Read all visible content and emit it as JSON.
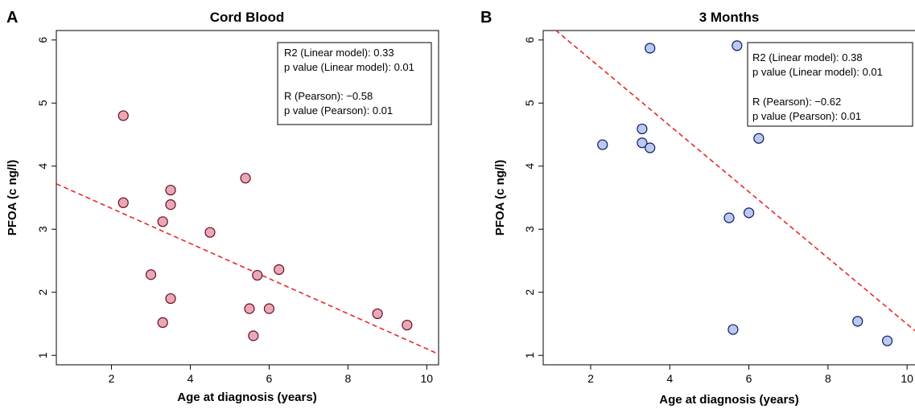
{
  "chart_data": [
    {
      "panel_letter": "A",
      "type": "scatter",
      "title": "Cord Blood",
      "xlabel": "Age at diagnosis (years)",
      "ylabel": "PFOA (c ng/l)",
      "xlim": [
        0.6,
        10.3
      ],
      "ylim": [
        0.85,
        6.15
      ],
      "xticks": [
        2,
        4,
        6,
        8,
        10
      ],
      "yticks": [
        1,
        2,
        3,
        4,
        5,
        6
      ],
      "grid": false,
      "point_color": "#e8a9b6",
      "point_stroke": "#6b0a1e",
      "points": [
        {
          "x": 2.3,
          "y": 4.8
        },
        {
          "x": 2.3,
          "y": 3.42
        },
        {
          "x": 3.0,
          "y": 2.28
        },
        {
          "x": 3.3,
          "y": 3.12
        },
        {
          "x": 3.3,
          "y": 1.52
        },
        {
          "x": 3.5,
          "y": 3.62
        },
        {
          "x": 3.5,
          "y": 3.39
        },
        {
          "x": 3.5,
          "y": 1.9
        },
        {
          "x": 4.5,
          "y": 2.95
        },
        {
          "x": 5.4,
          "y": 3.81
        },
        {
          "x": 5.5,
          "y": 1.74
        },
        {
          "x": 5.6,
          "y": 1.31
        },
        {
          "x": 5.7,
          "y": 2.27
        },
        {
          "x": 6.0,
          "y": 1.74
        },
        {
          "x": 6.25,
          "y": 2.36
        },
        {
          "x": 8.75,
          "y": 1.66
        },
        {
          "x": 9.5,
          "y": 1.48
        }
      ],
      "fit_line": {
        "x": [
          0.6,
          10.3
        ],
        "y": [
          3.72,
          1.02
        ],
        "color": "#e8282b",
        "style": "dashed"
      },
      "stats": [
        "R2 (Linear model): 0.33",
        "p value (Linear model): 0.01",
        "R (Pearson): −0.58",
        "p value (Pearson): 0.01"
      ]
    },
    {
      "panel_letter": "B",
      "type": "scatter",
      "title": "3 Months",
      "xlabel": "Age at diagnosis (years)",
      "ylabel": "PFOA (c ng/l)",
      "xlim": [
        0.8,
        10.2
      ],
      "ylim": [
        0.85,
        6.15
      ],
      "xticks": [
        2,
        4,
        6,
        8,
        10
      ],
      "yticks": [
        1,
        2,
        3,
        4,
        5,
        6
      ],
      "grid": false,
      "point_color": "#b9c9f2",
      "point_stroke": "#0c1a5c",
      "points": [
        {
          "x": 2.3,
          "y": 4.34
        },
        {
          "x": 3.3,
          "y": 4.59
        },
        {
          "x": 3.3,
          "y": 4.37
        },
        {
          "x": 3.5,
          "y": 5.87
        },
        {
          "x": 3.5,
          "y": 4.29
        },
        {
          "x": 5.5,
          "y": 3.18
        },
        {
          "x": 5.6,
          "y": 1.41
        },
        {
          "x": 5.7,
          "y": 5.91
        },
        {
          "x": 6.0,
          "y": 3.26
        },
        {
          "x": 6.25,
          "y": 4.44
        },
        {
          "x": 8.75,
          "y": 1.54
        },
        {
          "x": 9.5,
          "y": 1.23
        }
      ],
      "fit_line": {
        "x": [
          0.8,
          10.2
        ],
        "y": [
          6.32,
          1.39
        ],
        "color": "#e8282b",
        "style": "dashed"
      },
      "stats": [
        "R2 (Linear model): 0.38",
        "p value (Linear model): 0.01",
        "R (Pearson): −0.62",
        "p value (Pearson): 0.01"
      ]
    }
  ]
}
